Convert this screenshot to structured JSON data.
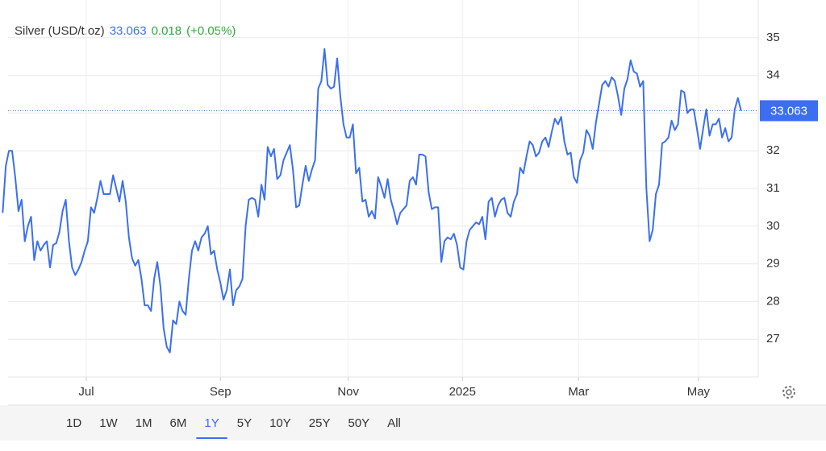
{
  "chart_data": {
    "type": "line",
    "title": "Silver (USD/t.oz)",
    "price": 33.063,
    "change": 0.018,
    "change_percent_label": "(+0.05%)",
    "series": [
      {
        "name": "Silver (USD/t.oz)",
        "color": "#3b6ff0",
        "values": [
          30.35,
          31.6,
          32.0,
          32.0,
          31.3,
          30.4,
          30.7,
          29.6,
          30.0,
          30.25,
          29.1,
          29.6,
          29.35,
          29.5,
          29.6,
          28.9,
          29.5,
          29.55,
          29.85,
          30.4,
          30.7,
          29.6,
          28.9,
          28.7,
          28.85,
          29.05,
          29.35,
          29.6,
          30.5,
          30.35,
          30.75,
          31.2,
          30.85,
          30.85,
          30.85,
          31.35,
          31.0,
          30.65,
          31.2,
          30.65,
          29.7,
          29.15,
          28.95,
          29.1,
          28.6,
          27.9,
          27.9,
          27.75,
          28.6,
          29.05,
          28.4,
          27.3,
          26.8,
          26.65,
          27.5,
          27.4,
          28.0,
          27.75,
          27.65,
          28.6,
          29.35,
          29.6,
          29.35,
          29.7,
          29.8,
          30.0,
          29.25,
          29.35,
          28.85,
          28.5,
          28.05,
          28.3,
          28.85,
          27.9,
          28.3,
          28.4,
          28.6,
          30.0,
          30.7,
          30.75,
          30.7,
          30.25,
          31.1,
          30.7,
          32.1,
          31.85,
          32.05,
          31.25,
          31.35,
          31.75,
          31.95,
          32.15,
          31.5,
          30.5,
          30.55,
          31.1,
          31.6,
          31.2,
          31.5,
          31.75,
          33.65,
          33.85,
          34.7,
          33.75,
          33.65,
          33.7,
          34.45,
          33.45,
          32.7,
          32.35,
          32.35,
          32.7,
          31.4,
          31.55,
          30.65,
          30.7,
          30.25,
          30.4,
          30.2,
          31.3,
          31.05,
          30.75,
          31.25,
          30.7,
          30.4,
          30.05,
          30.35,
          30.45,
          30.55,
          31.2,
          31.3,
          31.1,
          31.9,
          31.9,
          31.85,
          30.9,
          30.45,
          30.5,
          30.5,
          29.05,
          29.6,
          29.7,
          29.65,
          29.8,
          29.5,
          28.9,
          28.85,
          29.6,
          29.9,
          30.0,
          30.1,
          30.05,
          30.25,
          29.65,
          30.65,
          30.75,
          30.25,
          30.55,
          30.7,
          30.75,
          30.35,
          30.25,
          30.65,
          30.85,
          31.55,
          31.4,
          31.85,
          32.25,
          32.15,
          31.85,
          31.95,
          32.25,
          32.35,
          32.1,
          32.5,
          32.85,
          32.7,
          32.9,
          32.25,
          31.9,
          31.95,
          31.3,
          31.15,
          31.75,
          31.95,
          32.55,
          32.4,
          32.05,
          32.75,
          33.25,
          33.75,
          33.85,
          33.7,
          33.95,
          33.85,
          33.45,
          32.95,
          33.65,
          33.9,
          34.4,
          34.1,
          34.05,
          33.7,
          33.85,
          31.0,
          29.6,
          29.9,
          30.85,
          31.1,
          32.2,
          32.25,
          32.35,
          32.8,
          32.55,
          32.7,
          33.6,
          33.55,
          33.0,
          33.1,
          33.1,
          32.6,
          32.05,
          32.6,
          33.1,
          32.4,
          32.7,
          32.7,
          32.85,
          32.35,
          32.6,
          32.25,
          32.35,
          33.1,
          33.4,
          33.063
        ]
      }
    ],
    "ylim": [
      26,
      36
    ],
    "yticks": [
      27,
      28,
      29,
      30,
      31,
      32,
      33,
      34,
      35
    ],
    "xticks": [
      {
        "value": 26.5,
        "label": "Jul"
      },
      {
        "value": 69,
        "label": "Sep"
      },
      {
        "value": 109.5,
        "label": "Nov"
      },
      {
        "value": 145.7,
        "label": "2025"
      },
      {
        "value": 182.5,
        "label": "Mar"
      },
      {
        "value": 220.5,
        "label": "May"
      }
    ],
    "grid": true,
    "range_buttons": [
      "1D",
      "1W",
      "1M",
      "6M",
      "1Y",
      "5Y",
      "10Y",
      "25Y",
      "50Y",
      "All"
    ],
    "selected_range": 4
  }
}
